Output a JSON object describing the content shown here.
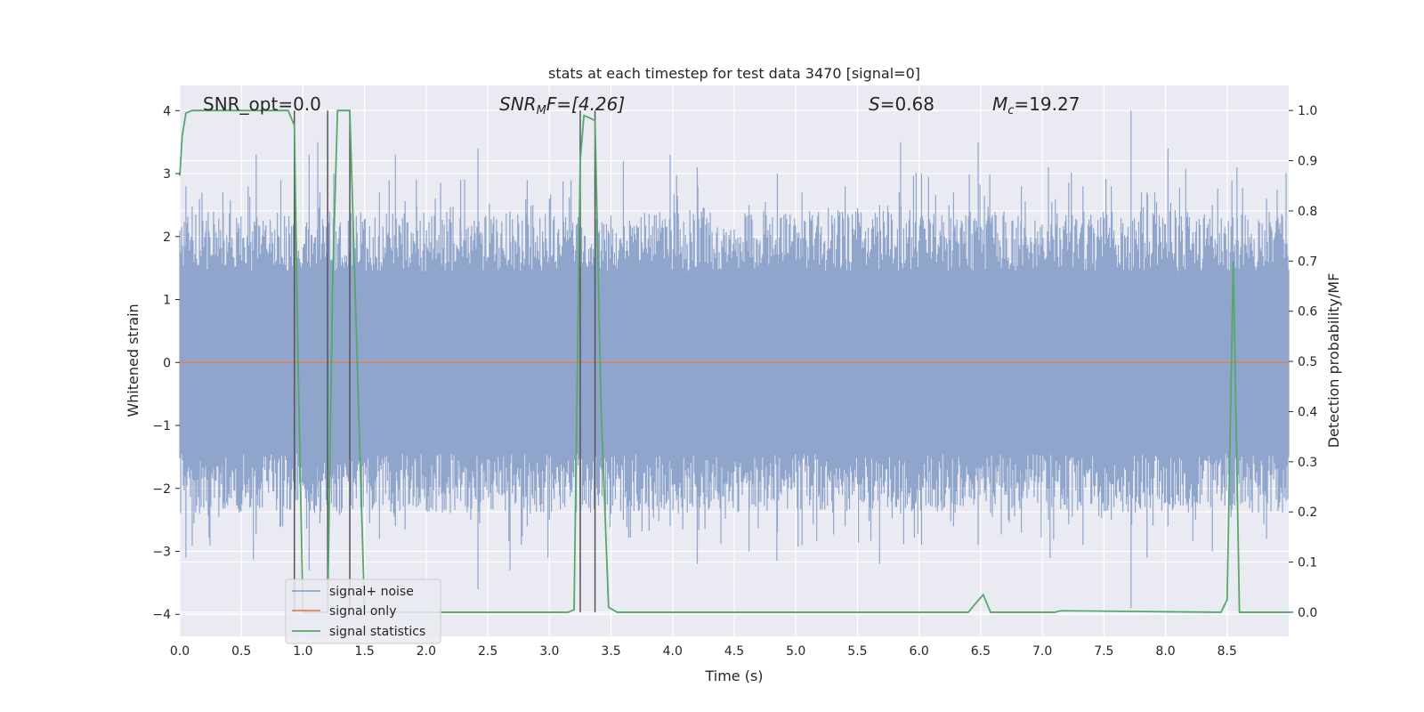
{
  "chart_data": {
    "type": "line",
    "title": "stats at each timestep for test data 3470 [signal=0]",
    "xlabel": "Time (s)",
    "ylabel": "Whitened strain",
    "ylabel_right": "Detection probability/MF",
    "xlim": [
      0.0,
      9.0
    ],
    "ylim": [
      -4.35,
      4.4
    ],
    "ylim_right": [
      -0.048,
      1.05
    ],
    "x_ticks": [
      0.0,
      0.5,
      1.0,
      1.5,
      2.0,
      2.5,
      3.0,
      3.5,
      4.0,
      4.5,
      5.0,
      5.5,
      6.0,
      6.5,
      7.0,
      7.5,
      8.0,
      8.5
    ],
    "x_tick_labels": [
      "0.0",
      "0.5",
      "1.0",
      "1.5",
      "2.0",
      "2.5",
      "3.0",
      "3.5",
      "4.0",
      "4.5",
      "5.0",
      "5.5",
      "6.0",
      "6.5",
      "7.0",
      "7.5",
      "8.0",
      "8.5"
    ],
    "y_ticks": [
      -4,
      -3,
      -2,
      -1,
      0,
      1,
      2,
      3,
      4
    ],
    "y_tick_labels": [
      "−4",
      "−3",
      "−2",
      "−1",
      "0",
      "1",
      "2",
      "3",
      "4"
    ],
    "y_right_ticks": [
      0.0,
      0.1,
      0.2,
      0.3,
      0.4,
      0.5,
      0.6,
      0.7,
      0.8,
      0.9,
      1.0
    ],
    "y_right_tick_labels": [
      "0.0",
      "0.1",
      "0.2",
      "0.3",
      "0.4",
      "0.5",
      "0.6",
      "0.7",
      "0.8",
      "0.9",
      "1.0"
    ],
    "grid": true,
    "legend_position": "lower-left",
    "annotations": {
      "snr_opt": "SNR_opt=0.0",
      "snr_mf_label": "SNR",
      "snr_mf_sub": "M",
      "snr_mf_value": "F=[4.26]",
      "s_label": "S",
      "s_value": "=0.68",
      "mc_label": "M",
      "mc_sub": "c",
      "mc_value": "=19.27"
    },
    "series": [
      {
        "name": "signal+ noise",
        "color": "#8fa5cc",
        "style": "noise",
        "extremes": [
          [
            0.05,
            2.8,
            -3.1
          ],
          [
            0.16,
            2.6,
            -2.4
          ],
          [
            0.35,
            2.7,
            -2.3
          ],
          [
            0.62,
            3.3,
            -2.5
          ],
          [
            0.82,
            2.9,
            -2.6
          ],
          [
            1.05,
            3.3,
            -3.3
          ],
          [
            1.12,
            3.5,
            -2.0
          ],
          [
            1.25,
            3.0,
            -2.3
          ],
          [
            1.38,
            3.5,
            -3.0
          ],
          [
            1.62,
            2.7,
            -2.8
          ],
          [
            1.75,
            3.3,
            -2.6
          ],
          [
            1.92,
            2.9,
            -2.3
          ],
          [
            2.28,
            2.9,
            -2.2
          ],
          [
            2.42,
            3.4,
            -3.6
          ],
          [
            2.68,
            2.4,
            -3.3
          ],
          [
            2.82,
            2.9,
            -2.6
          ],
          [
            3.0,
            2.6,
            -2.5
          ],
          [
            3.25,
            3.6,
            -3.5
          ],
          [
            3.6,
            3.2,
            -2.5
          ],
          [
            3.98,
            3.3,
            -2.6
          ],
          [
            4.2,
            3.1,
            -3.2
          ],
          [
            4.62,
            2.5,
            -3.0
          ],
          [
            4.85,
            3.0,
            -2.7
          ],
          [
            5.05,
            2.7,
            -2.9
          ],
          [
            5.4,
            2.8,
            -2.6
          ],
          [
            5.68,
            2.5,
            -3.2
          ],
          [
            5.85,
            3.5,
            -2.4
          ],
          [
            6.02,
            3.0,
            -2.9
          ],
          [
            6.28,
            2.7,
            -2.6
          ],
          [
            6.48,
            3.5,
            -2.9
          ],
          [
            6.83,
            2.8,
            -2.7
          ],
          [
            7.05,
            3.1,
            -2.5
          ],
          [
            7.33,
            2.8,
            -2.9
          ],
          [
            7.56,
            2.8,
            -2.5
          ],
          [
            7.72,
            4.0,
            -3.9
          ],
          [
            7.85,
            2.7,
            -3.1
          ],
          [
            8.02,
            3.4,
            -2.6
          ],
          [
            8.38,
            2.5,
            -3.0
          ],
          [
            8.58,
            3.1,
            -2.2
          ],
          [
            8.82,
            2.6,
            -2.8
          ]
        ]
      },
      {
        "name": "signal only",
        "color": "#dd8452",
        "y": 0
      },
      {
        "name": "signal statistics",
        "color": "#55a868",
        "axis": "right",
        "x": [
          0.0,
          0.02,
          0.05,
          0.1,
          0.2,
          0.8,
          0.88,
          0.93,
          0.96,
          1.0,
          1.05,
          1.12,
          1.2,
          1.24,
          1.28,
          1.38,
          1.44,
          1.5,
          1.55,
          3.15,
          3.2,
          3.25,
          3.28,
          3.33,
          3.37,
          3.42,
          3.48,
          3.55,
          6.4,
          6.45,
          6.52,
          6.58,
          7.1,
          7.15,
          8.45,
          8.5,
          8.55,
          8.6,
          8.65,
          9.0
        ],
        "y": [
          0.87,
          0.95,
          0.995,
          1.0,
          1.0,
          1.0,
          1.0,
          0.97,
          0.5,
          0.0,
          0.0,
          0.0,
          0.0,
          0.65,
          1.0,
          1.0,
          0.5,
          0.0,
          0.0,
          0.0,
          0.005,
          0.9,
          0.99,
          0.985,
          0.98,
          0.4,
          0.01,
          0.0,
          0.0,
          0.015,
          0.035,
          0.0,
          0.0,
          0.003,
          0.0,
          0.025,
          0.7,
          0.0,
          0.0,
          0.0
        ]
      }
    ],
    "vertical_markers": [
      {
        "x": 0.93,
        "y_top": 4.0
      },
      {
        "x": 1.2,
        "y_top": 4.0
      },
      {
        "x": 1.38,
        "y_top": 4.0
      },
      {
        "x": 3.25,
        "y_top": 4.0
      },
      {
        "x": 3.37,
        "y_top": 4.0
      }
    ],
    "legend": {
      "entries": [
        "signal+ noise",
        "signal only",
        "signal statistics"
      ]
    }
  }
}
